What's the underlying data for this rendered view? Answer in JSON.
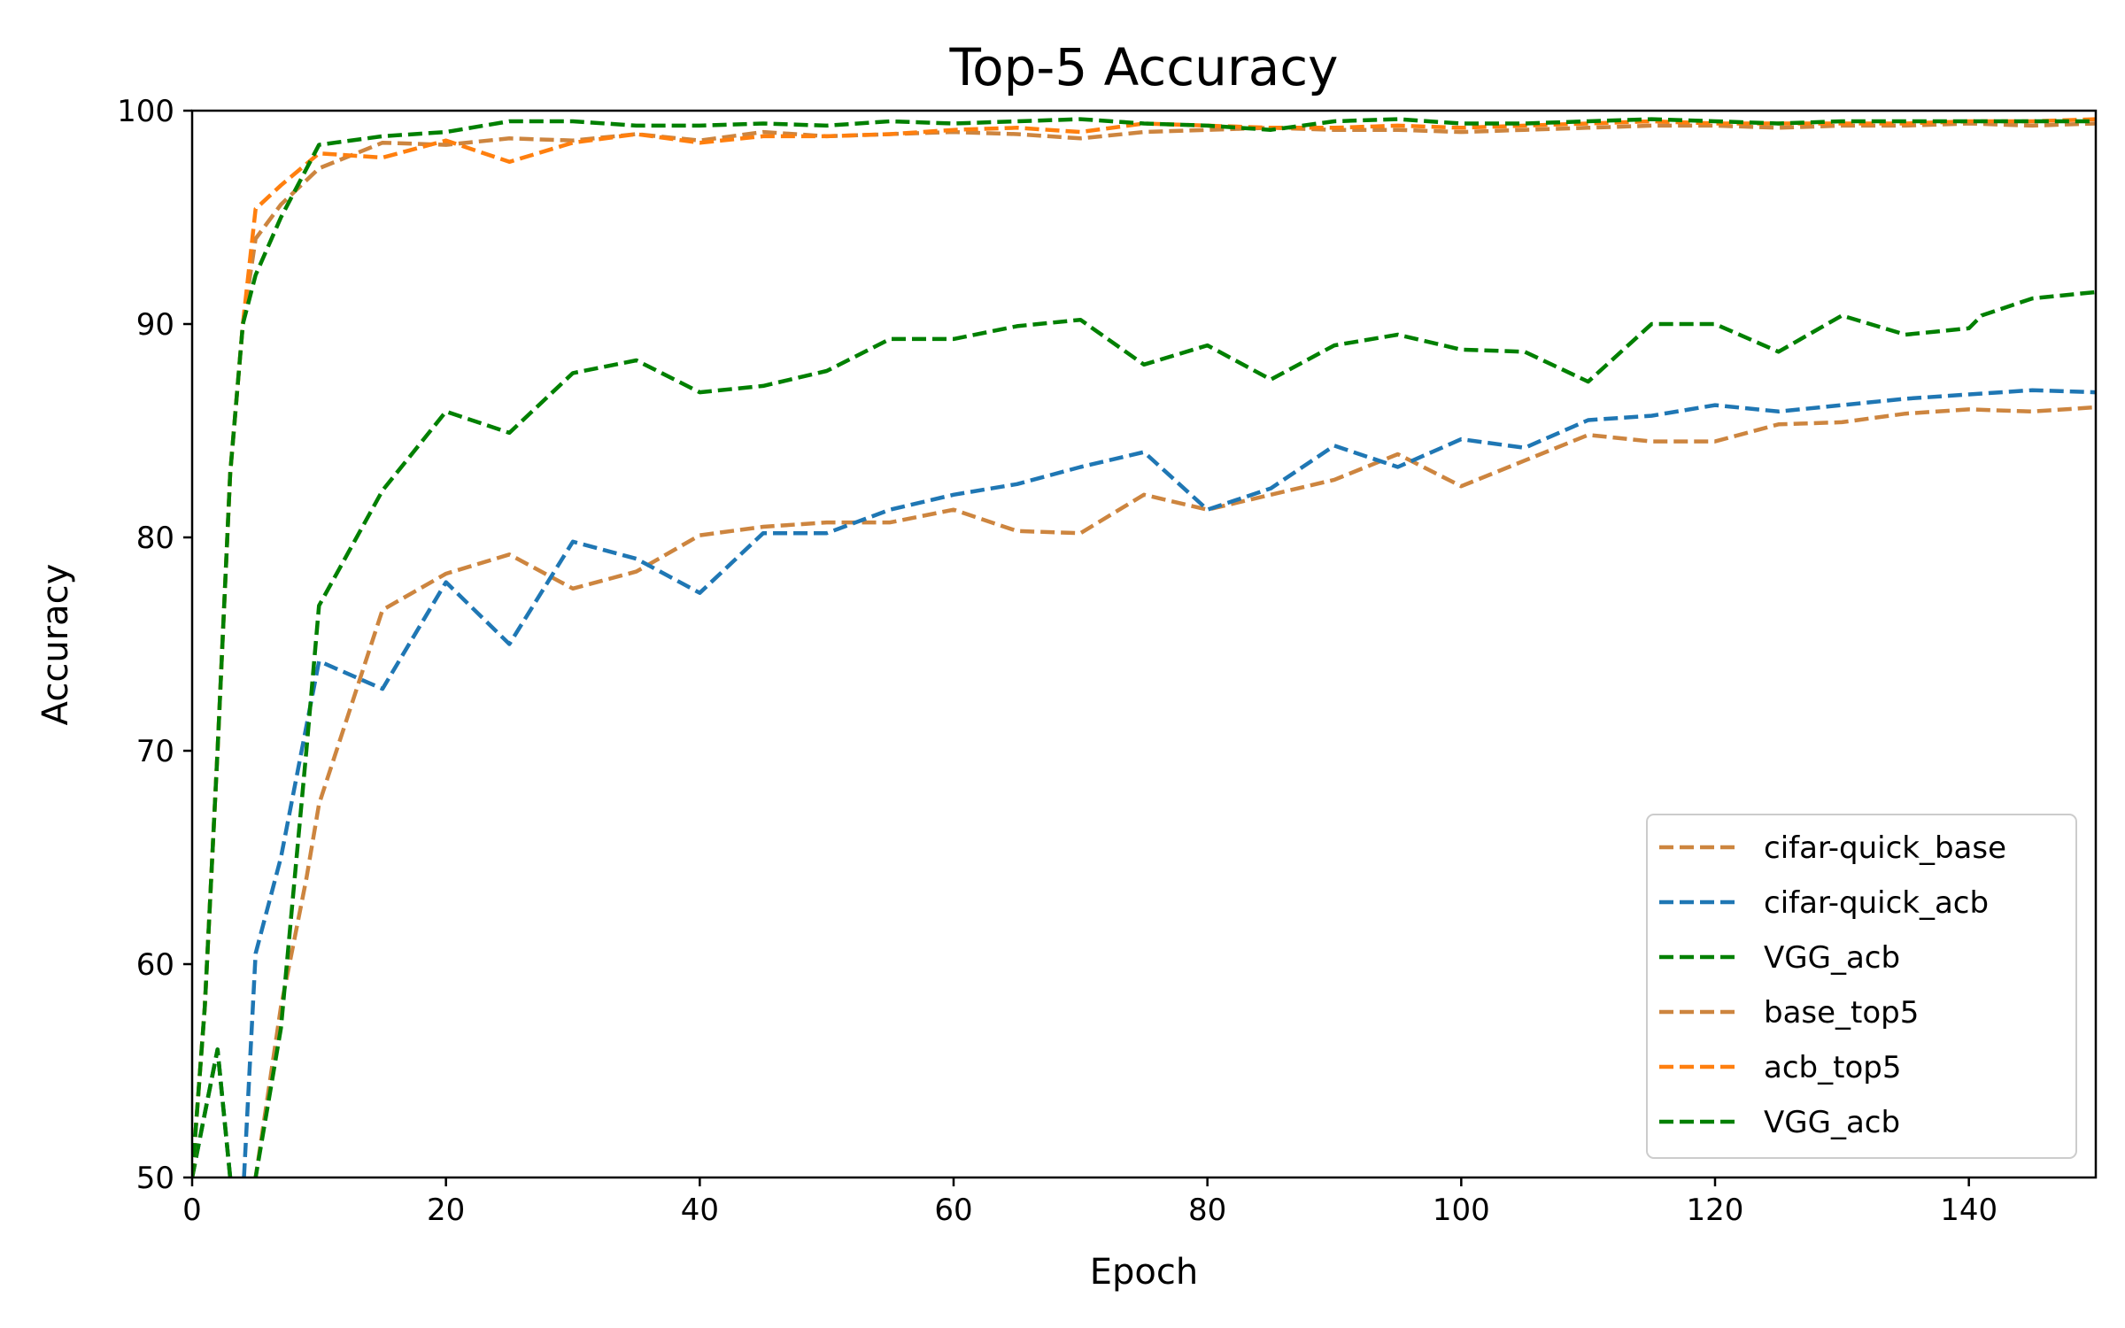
{
  "chart_data": {
    "type": "line",
    "title": "Top-5 Accuracy",
    "xlabel": "Epoch",
    "ylabel": "Accuracy",
    "xlim": [
      0,
      150
    ],
    "ylim": [
      50,
      100
    ],
    "xticks": [
      0,
      20,
      40,
      60,
      80,
      100,
      120,
      140
    ],
    "yticks": [
      50,
      60,
      70,
      80,
      90,
      100
    ],
    "grid": false,
    "legend_position": "lower right",
    "line_style": "dashed",
    "series": [
      {
        "name": "cifar-quick_base",
        "color": "#cd853f",
        "points": [
          [
            0,
            50.0
          ],
          [
            1,
            53
          ],
          [
            2,
            56
          ],
          [
            3,
            50
          ],
          [
            4,
            49
          ],
          [
            5,
            50
          ],
          [
            6,
            54
          ],
          [
            7,
            58
          ],
          [
            8,
            61
          ],
          [
            9,
            64
          ],
          [
            10,
            67.5
          ],
          [
            15,
            76.6
          ],
          [
            20,
            78.3
          ],
          [
            25,
            79.2
          ],
          [
            30,
            77.6
          ],
          [
            35,
            78.4
          ],
          [
            40,
            80.1
          ],
          [
            45,
            80.5
          ],
          [
            50,
            80.7
          ],
          [
            55,
            80.7
          ],
          [
            60,
            81.3
          ],
          [
            65,
            80.3
          ],
          [
            70,
            80.2
          ],
          [
            75,
            82.0
          ],
          [
            80,
            81.3
          ],
          [
            85,
            82.0
          ],
          [
            90,
            82.7
          ],
          [
            95,
            83.9
          ],
          [
            100,
            82.4
          ],
          [
            105,
            83.6
          ],
          [
            110,
            84.8
          ],
          [
            115,
            84.5
          ],
          [
            120,
            84.5
          ],
          [
            125,
            85.3
          ],
          [
            130,
            85.4
          ],
          [
            135,
            85.8
          ],
          [
            140,
            86.0
          ],
          [
            145,
            85.9
          ],
          [
            150,
            86.1
          ]
        ]
      },
      {
        "name": "cifar-quick_acb",
        "color": "#1f77b4",
        "points": [
          [
            0,
            50.0
          ],
          [
            1,
            53
          ],
          [
            2,
            56
          ],
          [
            3,
            50
          ],
          [
            4,
            49
          ],
          [
            5,
            60.5
          ],
          [
            7,
            65
          ],
          [
            10,
            74.2
          ],
          [
            15,
            72.9
          ],
          [
            20,
            77.9
          ],
          [
            25,
            75.0
          ],
          [
            30,
            79.8
          ],
          [
            35,
            79.0
          ],
          [
            40,
            77.4
          ],
          [
            45,
            80.2
          ],
          [
            50,
            80.2
          ],
          [
            55,
            81.3
          ],
          [
            60,
            82.0
          ],
          [
            65,
            82.5
          ],
          [
            70,
            83.3
          ],
          [
            75,
            84.0
          ],
          [
            80,
            81.3
          ],
          [
            85,
            82.3
          ],
          [
            90,
            84.3
          ],
          [
            95,
            83.3
          ],
          [
            100,
            84.6
          ],
          [
            105,
            84.2
          ],
          [
            110,
            85.5
          ],
          [
            115,
            85.7
          ],
          [
            120,
            86.2
          ],
          [
            125,
            85.9
          ],
          [
            130,
            86.2
          ],
          [
            135,
            86.5
          ],
          [
            140,
            86.7
          ],
          [
            145,
            86.9
          ],
          [
            150,
            86.8
          ]
        ]
      },
      {
        "name": "VGG_acb",
        "color": "#008000",
        "points": [
          [
            0,
            50.0
          ],
          [
            1,
            53
          ],
          [
            2,
            56
          ],
          [
            3,
            50
          ],
          [
            4,
            49
          ],
          [
            5,
            50
          ],
          [
            7,
            57
          ],
          [
            9,
            70
          ],
          [
            10,
            76.8
          ],
          [
            15,
            82.2
          ],
          [
            20,
            85.9
          ],
          [
            25,
            84.9
          ],
          [
            30,
            87.7
          ],
          [
            35,
            88.3
          ],
          [
            40,
            86.8
          ],
          [
            45,
            87.1
          ],
          [
            50,
            87.8
          ],
          [
            55,
            89.3
          ],
          [
            60,
            89.3
          ],
          [
            65,
            89.9
          ],
          [
            70,
            90.2
          ],
          [
            75,
            88.1
          ],
          [
            80,
            89.0
          ],
          [
            85,
            87.4
          ],
          [
            90,
            89.0
          ],
          [
            95,
            89.5
          ],
          [
            100,
            88.8
          ],
          [
            105,
            88.7
          ],
          [
            110,
            87.3
          ],
          [
            115,
            90.0
          ],
          [
            120,
            90.0
          ],
          [
            125,
            88.7
          ],
          [
            130,
            90.4
          ],
          [
            135,
            89.5
          ],
          [
            140,
            89.8
          ],
          [
            141,
            90.4
          ],
          [
            145,
            91.2
          ],
          [
            150,
            91.5
          ]
        ]
      },
      {
        "name": "base_top5",
        "color": "#cd853f",
        "points": [
          [
            0,
            50.0
          ],
          [
            1,
            58
          ],
          [
            2,
            70
          ],
          [
            3,
            83
          ],
          [
            4,
            90
          ],
          [
            5,
            94.0
          ],
          [
            7,
            95.6
          ],
          [
            10,
            97.3
          ],
          [
            15,
            98.5
          ],
          [
            20,
            98.4
          ],
          [
            25,
            98.7
          ],
          [
            30,
            98.6
          ],
          [
            35,
            98.9
          ],
          [
            40,
            98.6
          ],
          [
            45,
            99.0
          ],
          [
            50,
            98.8
          ],
          [
            55,
            98.9
          ],
          [
            60,
            99.0
          ],
          [
            65,
            98.9
          ],
          [
            70,
            98.7
          ],
          [
            75,
            99.0
          ],
          [
            80,
            99.1
          ],
          [
            85,
            99.2
          ],
          [
            90,
            99.1
          ],
          [
            95,
            99.1
          ],
          [
            100,
            99.0
          ],
          [
            105,
            99.1
          ],
          [
            110,
            99.2
          ],
          [
            115,
            99.3
          ],
          [
            120,
            99.3
          ],
          [
            125,
            99.2
          ],
          [
            130,
            99.3
          ],
          [
            135,
            99.3
          ],
          [
            140,
            99.4
          ],
          [
            145,
            99.3
          ],
          [
            150,
            99.4
          ]
        ]
      },
      {
        "name": "acb_top5",
        "color": "#ff7f0e",
        "points": [
          [
            0,
            50.0
          ],
          [
            1,
            58
          ],
          [
            2,
            70
          ],
          [
            3,
            83
          ],
          [
            4,
            90
          ],
          [
            5,
            95.4
          ],
          [
            7,
            96.5
          ],
          [
            10,
            98.0
          ],
          [
            15,
            97.8
          ],
          [
            20,
            98.6
          ],
          [
            25,
            97.6
          ],
          [
            30,
            98.5
          ],
          [
            35,
            98.9
          ],
          [
            40,
            98.5
          ],
          [
            45,
            98.8
          ],
          [
            50,
            98.8
          ],
          [
            55,
            98.9
          ],
          [
            60,
            99.1
          ],
          [
            65,
            99.2
          ],
          [
            70,
            99.0
          ],
          [
            75,
            99.4
          ],
          [
            80,
            99.3
          ],
          [
            85,
            99.2
          ],
          [
            90,
            99.2
          ],
          [
            95,
            99.3
          ],
          [
            100,
            99.2
          ],
          [
            105,
            99.3
          ],
          [
            110,
            99.4
          ],
          [
            115,
            99.5
          ],
          [
            120,
            99.4
          ],
          [
            125,
            99.4
          ],
          [
            130,
            99.4
          ],
          [
            135,
            99.4
          ],
          [
            140,
            99.5
          ],
          [
            145,
            99.5
          ],
          [
            150,
            99.6
          ]
        ]
      },
      {
        "name": "VGG_acb",
        "color": "#008000",
        "points": [
          [
            0,
            50.0
          ],
          [
            1,
            58
          ],
          [
            2,
            70
          ],
          [
            3,
            83
          ],
          [
            4,
            90
          ],
          [
            5,
            92.3
          ],
          [
            7,
            95.0
          ],
          [
            10,
            98.4
          ],
          [
            15,
            98.8
          ],
          [
            20,
            99.0
          ],
          [
            25,
            99.5
          ],
          [
            30,
            99.5
          ],
          [
            35,
            99.3
          ],
          [
            40,
            99.3
          ],
          [
            45,
            99.4
          ],
          [
            50,
            99.3
          ],
          [
            55,
            99.5
          ],
          [
            60,
            99.4
          ],
          [
            65,
            99.5
          ],
          [
            70,
            99.6
          ],
          [
            75,
            99.4
          ],
          [
            80,
            99.3
          ],
          [
            85,
            99.1
          ],
          [
            90,
            99.5
          ],
          [
            95,
            99.6
          ],
          [
            100,
            99.4
          ],
          [
            105,
            99.4
          ],
          [
            110,
            99.5
          ],
          [
            115,
            99.6
          ],
          [
            120,
            99.5
          ],
          [
            125,
            99.4
          ],
          [
            130,
            99.5
          ],
          [
            135,
            99.5
          ],
          [
            140,
            99.5
          ],
          [
            145,
            99.5
          ],
          [
            150,
            99.5
          ]
        ]
      }
    ]
  }
}
